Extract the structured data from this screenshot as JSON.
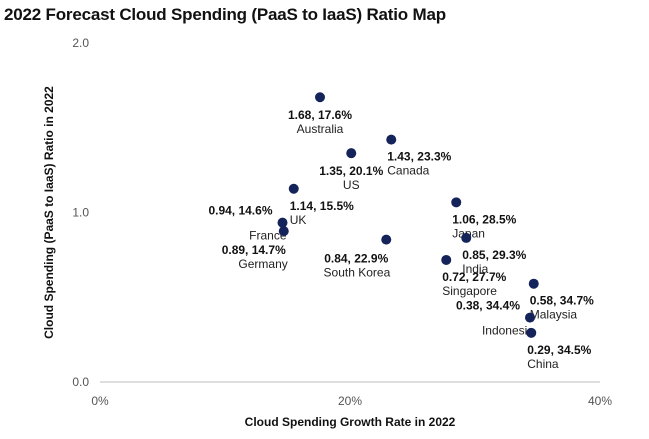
{
  "chart_data": {
    "type": "scatter",
    "title": "2022 Forecast Cloud Spending (PaaS to IaaS) Ratio Map",
    "xlabel": "Cloud Spending Growth Rate in 2022",
    "ylabel": "Cloud Spending (PaaS to IaaS) Ratio in 2022",
    "xlim": [
      0,
      40
    ],
    "ylim": [
      0,
      2
    ],
    "x_ticks": [
      {
        "value": 0,
        "label": "0%"
      },
      {
        "value": 20,
        "label": "20%"
      },
      {
        "value": 40,
        "label": "40%"
      }
    ],
    "y_ticks": [
      {
        "value": 0,
        "label": "0.0"
      },
      {
        "value": 1,
        "label": "1.0"
      },
      {
        "value": 2,
        "label": "2.0"
      }
    ],
    "marker_color": "#14245a",
    "points": [
      {
        "id": "australia",
        "name": "Australia",
        "label": "1.68, 17.6%",
        "x": 17.6,
        "y": 1.68,
        "pos": "below-center"
      },
      {
        "id": "us",
        "name": "US",
        "label": "1.35, 20.1%",
        "x": 20.1,
        "y": 1.35,
        "pos": "below-center"
      },
      {
        "id": "canada",
        "name": "Canada",
        "label": "1.43, 23.3%",
        "x": 23.3,
        "y": 1.43,
        "pos": "below-left"
      },
      {
        "id": "uk",
        "name": "UK",
        "label": "1.14, 15.5%",
        "x": 15.5,
        "y": 1.14,
        "pos": "below-left"
      },
      {
        "id": "france",
        "name": "France",
        "label": "0.94, 14.6%",
        "x": 14.6,
        "y": 0.94,
        "pos": "above-right"
      },
      {
        "id": "germany",
        "name": "Germany",
        "label": "0.89, 14.7%",
        "x": 14.7,
        "y": 0.89,
        "pos": "below-right"
      },
      {
        "id": "south-korea",
        "name": "South Korea",
        "label": "0.84, 22.9%",
        "x": 22.9,
        "y": 0.84,
        "pos": "below-right"
      },
      {
        "id": "japan",
        "name": "Japan",
        "label": "1.06, 28.5%",
        "x": 28.5,
        "y": 1.06,
        "pos": "below-left"
      },
      {
        "id": "india",
        "name": "India",
        "label": "0.85, 29.3%",
        "x": 29.3,
        "y": 0.85,
        "pos": "below-left"
      },
      {
        "id": "singapore",
        "name": "Singapore",
        "label": "0.72, 27.7%",
        "x": 27.7,
        "y": 0.72,
        "pos": "below-left"
      },
      {
        "id": "malaysia",
        "name": "Malaysia",
        "label": "0.58, 34.7%",
        "x": 34.7,
        "y": 0.58,
        "pos": "below-left"
      },
      {
        "id": "indonesia",
        "name": "Indonesia",
        "label": "0.38, 34.4%",
        "x": 34.4,
        "y": 0.38,
        "pos": "above-right"
      },
      {
        "id": "china",
        "name": "China",
        "label": "0.29, 34.5%",
        "x": 34.5,
        "y": 0.29,
        "pos": "below-left"
      }
    ]
  }
}
